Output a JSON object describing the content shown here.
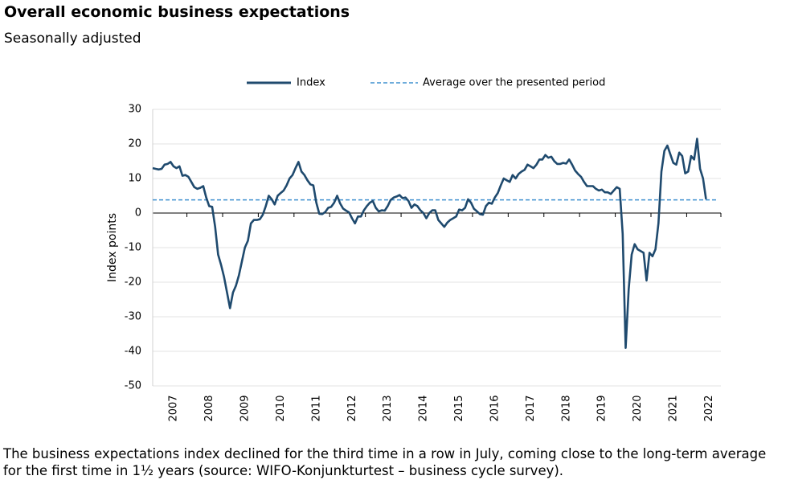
{
  "chart_data": {
    "type": "line",
    "title": "Overall economic business expectations",
    "subtitle": "Seasonally adjusted",
    "y_label": "Index points",
    "caption": "The business expectations index declined for the third time in a row in July, coming close to the long-term average for the first time in 1½ years (source: WIFO-Konjunkturtest – business cycle survey).",
    "categories": [
      null,
      null,
      null,
      null,
      null,
      null,
      "2007",
      null,
      null,
      null,
      null,
      null,
      null,
      null,
      null,
      null,
      null,
      null,
      "2008",
      null,
      null,
      null,
      null,
      null,
      null,
      null,
      null,
      null,
      null,
      null,
      "2009",
      null,
      null,
      null,
      null,
      null,
      null,
      null,
      null,
      null,
      null,
      null,
      "2010",
      null,
      null,
      null,
      null,
      null,
      null,
      null,
      null,
      null,
      null,
      null,
      "2011",
      null,
      null,
      null,
      null,
      null,
      null,
      null,
      null,
      null,
      null,
      null,
      "2012",
      null,
      null,
      null,
      null,
      null,
      null,
      null,
      null,
      null,
      null,
      null,
      "2013",
      null,
      null,
      null,
      null,
      null,
      null,
      null,
      null,
      null,
      null,
      null,
      "2014",
      null,
      null,
      null,
      null,
      null,
      null,
      null,
      null,
      null,
      null,
      null,
      "2015",
      null,
      null,
      null,
      null,
      null,
      null,
      null,
      null,
      null,
      null,
      null,
      "2016",
      null,
      null,
      null,
      null,
      null,
      null,
      null,
      null,
      null,
      null,
      null,
      "2017",
      null,
      null,
      null,
      null,
      null,
      null,
      null,
      null,
      null,
      null,
      null,
      "2018",
      null,
      null,
      null,
      null,
      null,
      null,
      null,
      null,
      null,
      null,
      null,
      "2019",
      null,
      null,
      null,
      null,
      null,
      null,
      null,
      null,
      null,
      null,
      null,
      "2020",
      null,
      null,
      null,
      null,
      null,
      null,
      null,
      null,
      null,
      null,
      null,
      "2021",
      null,
      null,
      null,
      null,
      null,
      null,
      null,
      null,
      null,
      null,
      null,
      "2022"
    ],
    "series": [
      {
        "name": "Index",
        "color": "#1f4a6e",
        "values": [
          13,
          12.8,
          12.6,
          12.8,
          14,
          14.2,
          14.8,
          13.5,
          13,
          13.5,
          10.8,
          11,
          10.5,
          9,
          7.5,
          7,
          7.3,
          7.8,
          4.5,
          2,
          1.8,
          -4,
          -12,
          -15,
          -18.5,
          -23,
          -27.5,
          -23,
          -21,
          -18,
          -14,
          -10,
          -8,
          -3,
          -2,
          -2,
          -1.8,
          -0.5,
          2,
          5,
          4,
          2.5,
          5,
          5.8,
          6.5,
          8,
          10,
          11,
          13,
          14.8,
          12,
          11,
          9.5,
          8.3,
          8,
          3,
          -0.2,
          -0.3,
          0.3,
          1.5,
          1.8,
          3,
          5,
          2.8,
          1.3,
          0.7,
          0.2,
          -1.5,
          -3,
          -1,
          -1,
          0.8,
          2,
          3,
          3.5,
          1.5,
          0.5,
          0.8,
          0.7,
          2,
          3.8,
          4.5,
          4.8,
          5.2,
          4.3,
          4.5,
          3.5,
          1.5,
          2.5,
          2,
          0.8,
          0,
          -1.5,
          0,
          0.8,
          0.8,
          -2,
          -3,
          -4,
          -2.8,
          -2,
          -1.5,
          -1,
          1,
          0.8,
          1.5,
          4,
          3,
          1.2,
          0.5,
          -0.3,
          -0.5,
          2,
          3,
          2.7,
          4.5,
          5.8,
          8,
          10,
          9.5,
          9,
          11,
          10,
          11.3,
          12,
          12.5,
          14,
          13.5,
          13,
          14,
          15.5,
          15.5,
          16.8,
          16,
          16.3,
          15,
          14.2,
          14.2,
          14.5,
          14.3,
          15.5,
          14,
          12.3,
          11.3,
          10.5,
          9,
          7.8,
          7.8,
          7.8,
          7,
          6.5,
          6.8,
          6,
          6,
          5.5,
          6.5,
          7.5,
          7,
          -6,
          -39,
          -22,
          -12,
          -9,
          -10.5,
          -11,
          -11.5,
          -19.5,
          -11.5,
          -12.5,
          -10.5,
          -3,
          12,
          18,
          19.5,
          17,
          14.5,
          14,
          17.5,
          16.5,
          11.5,
          12,
          16.5,
          15.5,
          21.5,
          12.8,
          10,
          4
        ]
      }
    ],
    "reference_line": {
      "name": "Average over the presented period",
      "value": 3.8,
      "color": "#3f90cf"
    },
    "ylim": [
      -50,
      30
    ],
    "yticks": [
      -50,
      -40,
      -30,
      -20,
      -10,
      0,
      10,
      20,
      30
    ],
    "grid": true,
    "legend": "top"
  }
}
